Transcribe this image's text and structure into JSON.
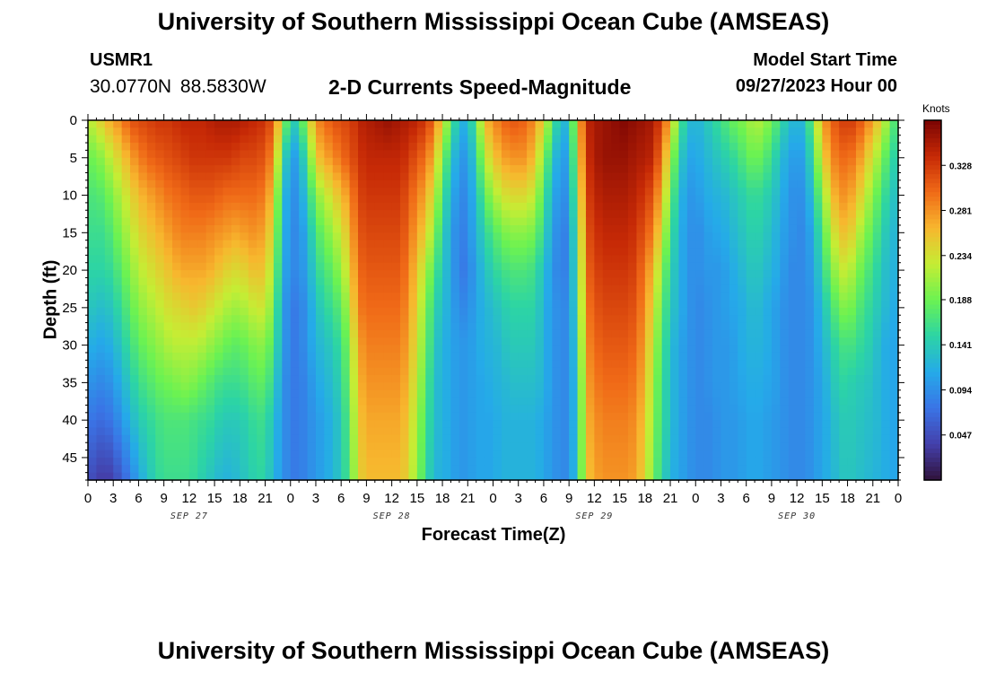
{
  "header": {
    "title": "University of Southern Mississippi Ocean Cube (AMSEAS)",
    "station": "USMR1",
    "coordinates": "30.0770N  88.5830W",
    "subtitle": "2-D Currents Speed-Magnitude",
    "model_start_label": "Model Start Time",
    "model_start_value": "09/27/2023 Hour 00",
    "footer_title": "University of Southern Mississippi Ocean Cube (AMSEAS)"
  },
  "chart_data": {
    "type": "heatmap",
    "title": "2-D Currents Speed-Magnitude",
    "xlabel": "Forecast Time(Z)",
    "ylabel": "Depth (ft)",
    "x_unit": "hours since 09/27/2023 00Z",
    "xlim": [
      0,
      96
    ],
    "ylim": [
      48,
      0
    ],
    "x_ticks": [
      "0",
      "3",
      "6",
      "9",
      "12",
      "15",
      "18",
      "21",
      "0",
      "3",
      "6",
      "9",
      "12",
      "15",
      "18",
      "21",
      "0",
      "3",
      "6",
      "9",
      "12",
      "15",
      "18",
      "21",
      "0",
      "3",
      "6",
      "9",
      "12",
      "15",
      "18",
      "21",
      "0"
    ],
    "day_labels": [
      {
        "label": "SEP 27",
        "hour": 12
      },
      {
        "label": "SEP 28",
        "hour": 36
      },
      {
        "label": "SEP 29",
        "hour": 60
      },
      {
        "label": "SEP 30",
        "hour": 84
      }
    ],
    "y_ticks": [
      0,
      5,
      10,
      15,
      20,
      25,
      30,
      35,
      40,
      45
    ],
    "colorbar": {
      "label": "Knots",
      "min": 0.0,
      "max": 0.375,
      "ticks": [
        "0.047",
        "0.094",
        "0.141",
        "0.188",
        "0.234",
        "0.281",
        "0.328"
      ]
    },
    "depths_ft": [
      0,
      5,
      10,
      15,
      20,
      25,
      30,
      35,
      40,
      48
    ],
    "hours": [
      0,
      1,
      2,
      3,
      4,
      5,
      6,
      7,
      8,
      9,
      10,
      11,
      12,
      13,
      14,
      15,
      16,
      17,
      18,
      19,
      20,
      21,
      22,
      23,
      24,
      25,
      26,
      27,
      28,
      29,
      30,
      31,
      32,
      33,
      34,
      35,
      36,
      37,
      38,
      39,
      40,
      41,
      42,
      43,
      44,
      45,
      46,
      47,
      48,
      49,
      50,
      51,
      52,
      53,
      54,
      55,
      56,
      57,
      58,
      59,
      60,
      61,
      62,
      63,
      64,
      65,
      66,
      67,
      68,
      69,
      70,
      71,
      72,
      73,
      74,
      75,
      76,
      77,
      78,
      79,
      80,
      81,
      82,
      83,
      84,
      85,
      86,
      87,
      88,
      89,
      90,
      91,
      92,
      93,
      94,
      95,
      96
    ],
    "speed_knots": [
      [
        0.22,
        0.23,
        0.26,
        0.27,
        0.29,
        0.31,
        0.32,
        0.32,
        0.33,
        0.33,
        0.33,
        0.34,
        0.34,
        0.34,
        0.34,
        0.35,
        0.35,
        0.35,
        0.35,
        0.34,
        0.34,
        0.33,
        0.31,
        0.22,
        0.14,
        0.15,
        0.22,
        0.28,
        0.3,
        0.31,
        0.32,
        0.32,
        0.34,
        0.35,
        0.35,
        0.36,
        0.36,
        0.35,
        0.35,
        0.34,
        0.33,
        0.3,
        0.24,
        0.18,
        0.12,
        0.12,
        0.18,
        0.26,
        0.28,
        0.3,
        0.31,
        0.31,
        0.3,
        0.28,
        0.24,
        0.18,
        0.12,
        0.13,
        0.24,
        0.34,
        0.35,
        0.36,
        0.36,
        0.37,
        0.37,
        0.36,
        0.36,
        0.35,
        0.32,
        0.26,
        0.18,
        0.13,
        0.12,
        0.13,
        0.15,
        0.16,
        0.18,
        0.19,
        0.2,
        0.22,
        0.21,
        0.19,
        0.16,
        0.13,
        0.12,
        0.13,
        0.2,
        0.27,
        0.3,
        0.32,
        0.33,
        0.32,
        0.3,
        0.27,
        0.24,
        0.19,
        0.16
      ],
      [
        0.19,
        0.19,
        0.21,
        0.23,
        0.25,
        0.27,
        0.29,
        0.3,
        0.31,
        0.31,
        0.32,
        0.32,
        0.33,
        0.33,
        0.33,
        0.33,
        0.33,
        0.33,
        0.32,
        0.32,
        0.32,
        0.31,
        0.28,
        0.17,
        0.1,
        0.11,
        0.17,
        0.25,
        0.27,
        0.28,
        0.3,
        0.31,
        0.33,
        0.34,
        0.34,
        0.34,
        0.34,
        0.34,
        0.33,
        0.31,
        0.3,
        0.26,
        0.2,
        0.14,
        0.1,
        0.1,
        0.15,
        0.22,
        0.25,
        0.27,
        0.28,
        0.28,
        0.28,
        0.25,
        0.2,
        0.14,
        0.1,
        0.11,
        0.22,
        0.33,
        0.35,
        0.36,
        0.36,
        0.36,
        0.36,
        0.35,
        0.35,
        0.34,
        0.29,
        0.22,
        0.15,
        0.11,
        0.11,
        0.12,
        0.13,
        0.14,
        0.15,
        0.16,
        0.18,
        0.19,
        0.18,
        0.16,
        0.13,
        0.11,
        0.1,
        0.11,
        0.17,
        0.24,
        0.28,
        0.3,
        0.3,
        0.29,
        0.26,
        0.23,
        0.2,
        0.16,
        0.14
      ],
      [
        0.17,
        0.17,
        0.18,
        0.2,
        0.22,
        0.24,
        0.26,
        0.27,
        0.28,
        0.29,
        0.3,
        0.3,
        0.31,
        0.31,
        0.31,
        0.31,
        0.3,
        0.3,
        0.3,
        0.3,
        0.3,
        0.29,
        0.25,
        0.14,
        0.09,
        0.1,
        0.14,
        0.2,
        0.22,
        0.24,
        0.26,
        0.28,
        0.32,
        0.33,
        0.33,
        0.33,
        0.33,
        0.33,
        0.31,
        0.29,
        0.27,
        0.23,
        0.17,
        0.12,
        0.09,
        0.09,
        0.13,
        0.18,
        0.21,
        0.23,
        0.24,
        0.24,
        0.24,
        0.22,
        0.17,
        0.12,
        0.09,
        0.1,
        0.2,
        0.32,
        0.34,
        0.35,
        0.35,
        0.35,
        0.35,
        0.34,
        0.33,
        0.31,
        0.26,
        0.19,
        0.13,
        0.1,
        0.1,
        0.11,
        0.12,
        0.12,
        0.13,
        0.14,
        0.15,
        0.16,
        0.15,
        0.14,
        0.12,
        0.1,
        0.09,
        0.1,
        0.14,
        0.2,
        0.25,
        0.28,
        0.28,
        0.26,
        0.23,
        0.2,
        0.17,
        0.14,
        0.13
      ],
      [
        0.16,
        0.16,
        0.16,
        0.18,
        0.2,
        0.22,
        0.24,
        0.25,
        0.26,
        0.27,
        0.28,
        0.29,
        0.29,
        0.29,
        0.29,
        0.28,
        0.28,
        0.27,
        0.27,
        0.28,
        0.28,
        0.27,
        0.23,
        0.13,
        0.09,
        0.09,
        0.12,
        0.17,
        0.19,
        0.21,
        0.23,
        0.26,
        0.31,
        0.32,
        0.32,
        0.32,
        0.32,
        0.32,
        0.3,
        0.27,
        0.25,
        0.2,
        0.15,
        0.11,
        0.08,
        0.09,
        0.12,
        0.15,
        0.17,
        0.19,
        0.2,
        0.2,
        0.2,
        0.19,
        0.15,
        0.11,
        0.08,
        0.09,
        0.18,
        0.31,
        0.33,
        0.34,
        0.34,
        0.34,
        0.34,
        0.33,
        0.31,
        0.29,
        0.23,
        0.17,
        0.12,
        0.1,
        0.09,
        0.1,
        0.11,
        0.11,
        0.12,
        0.13,
        0.14,
        0.15,
        0.14,
        0.13,
        0.11,
        0.1,
        0.09,
        0.09,
        0.12,
        0.17,
        0.22,
        0.25,
        0.26,
        0.23,
        0.2,
        0.18,
        0.15,
        0.13,
        0.12
      ],
      [
        0.15,
        0.15,
        0.15,
        0.16,
        0.18,
        0.2,
        0.22,
        0.23,
        0.24,
        0.25,
        0.26,
        0.27,
        0.27,
        0.27,
        0.27,
        0.26,
        0.25,
        0.24,
        0.24,
        0.25,
        0.26,
        0.25,
        0.21,
        0.12,
        0.09,
        0.09,
        0.11,
        0.15,
        0.17,
        0.18,
        0.21,
        0.24,
        0.3,
        0.31,
        0.31,
        0.31,
        0.31,
        0.31,
        0.29,
        0.25,
        0.22,
        0.17,
        0.14,
        0.11,
        0.08,
        0.08,
        0.11,
        0.13,
        0.15,
        0.16,
        0.17,
        0.17,
        0.17,
        0.16,
        0.13,
        0.1,
        0.08,
        0.09,
        0.17,
        0.3,
        0.32,
        0.33,
        0.33,
        0.33,
        0.33,
        0.32,
        0.29,
        0.26,
        0.2,
        0.15,
        0.12,
        0.1,
        0.09,
        0.1,
        0.1,
        0.1,
        0.11,
        0.12,
        0.13,
        0.14,
        0.13,
        0.12,
        0.11,
        0.09,
        0.09,
        0.09,
        0.11,
        0.15,
        0.19,
        0.22,
        0.23,
        0.2,
        0.18,
        0.16,
        0.14,
        0.12,
        0.12
      ],
      [
        0.14,
        0.13,
        0.13,
        0.14,
        0.16,
        0.18,
        0.2,
        0.21,
        0.22,
        0.23,
        0.24,
        0.24,
        0.25,
        0.25,
        0.24,
        0.23,
        0.22,
        0.21,
        0.21,
        0.22,
        0.23,
        0.23,
        0.19,
        0.11,
        0.08,
        0.08,
        0.1,
        0.13,
        0.15,
        0.16,
        0.18,
        0.22,
        0.29,
        0.3,
        0.3,
        0.3,
        0.3,
        0.3,
        0.28,
        0.24,
        0.2,
        0.15,
        0.13,
        0.11,
        0.09,
        0.09,
        0.11,
        0.12,
        0.13,
        0.14,
        0.15,
        0.15,
        0.15,
        0.15,
        0.12,
        0.1,
        0.09,
        0.09,
        0.16,
        0.29,
        0.31,
        0.32,
        0.32,
        0.32,
        0.32,
        0.31,
        0.28,
        0.24,
        0.18,
        0.14,
        0.12,
        0.1,
        0.09,
        0.09,
        0.1,
        0.1,
        0.11,
        0.11,
        0.12,
        0.13,
        0.12,
        0.11,
        0.1,
        0.09,
        0.09,
        0.09,
        0.1,
        0.13,
        0.16,
        0.19,
        0.2,
        0.18,
        0.16,
        0.15,
        0.13,
        0.12,
        0.11
      ],
      [
        0.12,
        0.11,
        0.11,
        0.12,
        0.14,
        0.16,
        0.18,
        0.19,
        0.2,
        0.21,
        0.22,
        0.22,
        0.22,
        0.22,
        0.21,
        0.2,
        0.19,
        0.18,
        0.18,
        0.19,
        0.2,
        0.2,
        0.17,
        0.11,
        0.08,
        0.08,
        0.1,
        0.12,
        0.13,
        0.14,
        0.16,
        0.2,
        0.27,
        0.29,
        0.29,
        0.29,
        0.29,
        0.29,
        0.27,
        0.23,
        0.19,
        0.14,
        0.12,
        0.11,
        0.1,
        0.1,
        0.11,
        0.12,
        0.12,
        0.13,
        0.14,
        0.14,
        0.14,
        0.14,
        0.12,
        0.1,
        0.09,
        0.09,
        0.15,
        0.28,
        0.3,
        0.31,
        0.31,
        0.31,
        0.31,
        0.3,
        0.27,
        0.22,
        0.17,
        0.13,
        0.11,
        0.1,
        0.09,
        0.09,
        0.1,
        0.1,
        0.1,
        0.11,
        0.12,
        0.12,
        0.12,
        0.11,
        0.1,
        0.09,
        0.09,
        0.09,
        0.1,
        0.12,
        0.14,
        0.16,
        0.17,
        0.16,
        0.15,
        0.14,
        0.12,
        0.11,
        0.11
      ],
      [
        0.1,
        0.09,
        0.09,
        0.1,
        0.12,
        0.14,
        0.16,
        0.17,
        0.18,
        0.19,
        0.19,
        0.2,
        0.2,
        0.19,
        0.18,
        0.17,
        0.16,
        0.16,
        0.16,
        0.17,
        0.18,
        0.18,
        0.15,
        0.1,
        0.08,
        0.08,
        0.09,
        0.11,
        0.12,
        0.13,
        0.15,
        0.19,
        0.26,
        0.28,
        0.28,
        0.28,
        0.28,
        0.28,
        0.26,
        0.22,
        0.18,
        0.13,
        0.12,
        0.11,
        0.1,
        0.1,
        0.11,
        0.11,
        0.12,
        0.12,
        0.13,
        0.13,
        0.13,
        0.13,
        0.12,
        0.1,
        0.09,
        0.09,
        0.14,
        0.27,
        0.29,
        0.3,
        0.3,
        0.3,
        0.3,
        0.29,
        0.26,
        0.21,
        0.16,
        0.13,
        0.11,
        0.1,
        0.09,
        0.09,
        0.1,
        0.1,
        0.1,
        0.11,
        0.11,
        0.12,
        0.11,
        0.11,
        0.1,
        0.09,
        0.09,
        0.09,
        0.1,
        0.11,
        0.13,
        0.15,
        0.15,
        0.14,
        0.14,
        0.13,
        0.12,
        0.11,
        0.11
      ],
      [
        0.08,
        0.07,
        0.07,
        0.08,
        0.1,
        0.12,
        0.14,
        0.15,
        0.16,
        0.17,
        0.17,
        0.17,
        0.17,
        0.16,
        0.16,
        0.15,
        0.14,
        0.14,
        0.14,
        0.15,
        0.16,
        0.16,
        0.13,
        0.1,
        0.08,
        0.08,
        0.09,
        0.1,
        0.11,
        0.12,
        0.14,
        0.18,
        0.25,
        0.27,
        0.27,
        0.27,
        0.27,
        0.27,
        0.25,
        0.21,
        0.17,
        0.13,
        0.12,
        0.11,
        0.1,
        0.1,
        0.11,
        0.11,
        0.11,
        0.12,
        0.12,
        0.12,
        0.12,
        0.12,
        0.11,
        0.1,
        0.09,
        0.09,
        0.14,
        0.26,
        0.28,
        0.29,
        0.29,
        0.29,
        0.29,
        0.28,
        0.25,
        0.2,
        0.16,
        0.13,
        0.11,
        0.1,
        0.09,
        0.09,
        0.09,
        0.1,
        0.1,
        0.1,
        0.11,
        0.11,
        0.11,
        0.1,
        0.1,
        0.09,
        0.09,
        0.09,
        0.1,
        0.11,
        0.12,
        0.14,
        0.14,
        0.14,
        0.13,
        0.13,
        0.12,
        0.11,
        0.11
      ],
      [
        0.05,
        0.04,
        0.03,
        0.04,
        0.06,
        0.08,
        0.11,
        0.13,
        0.15,
        0.16,
        0.16,
        0.16,
        0.16,
        0.15,
        0.14,
        0.13,
        0.12,
        0.12,
        0.13,
        0.14,
        0.15,
        0.15,
        0.12,
        0.1,
        0.08,
        0.08,
        0.09,
        0.1,
        0.11,
        0.12,
        0.14,
        0.17,
        0.24,
        0.26,
        0.26,
        0.26,
        0.26,
        0.26,
        0.24,
        0.2,
        0.16,
        0.12,
        0.12,
        0.11,
        0.1,
        0.1,
        0.11,
        0.11,
        0.11,
        0.12,
        0.12,
        0.12,
        0.12,
        0.12,
        0.11,
        0.1,
        0.09,
        0.09,
        0.14,
        0.25,
        0.27,
        0.28,
        0.28,
        0.28,
        0.28,
        0.27,
        0.24,
        0.19,
        0.15,
        0.12,
        0.11,
        0.1,
        0.09,
        0.09,
        0.09,
        0.1,
        0.1,
        0.1,
        0.11,
        0.11,
        0.11,
        0.1,
        0.1,
        0.09,
        0.09,
        0.09,
        0.1,
        0.11,
        0.12,
        0.13,
        0.14,
        0.13,
        0.13,
        0.12,
        0.12,
        0.11,
        0.11
      ]
    ]
  }
}
